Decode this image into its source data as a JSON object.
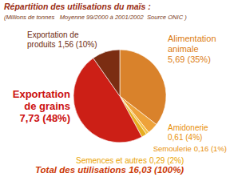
{
  "chart_data": {
    "type": "pie",
    "title": "Répartition des utilisations du maïs :",
    "subtitle": "(Millions de tonnes   Moyenne 99/2000 à 2001/2002  Source ONIC )",
    "categories": [
      "Alimentation animale",
      "Amidonerie",
      "Semoulerie",
      "Semences et autres",
      "Exportation de grains",
      "Exportation de produits"
    ],
    "values": [
      5.69,
      0.61,
      0.16,
      0.29,
      7.73,
      1.56
    ],
    "value_labels": [
      "5,69 (35%)",
      "0,61 (4%)",
      "0,16 (1%)",
      "0,29 (2%)",
      "7,73 (48%)",
      "1,56 (10%)"
    ],
    "colors": [
      "#d9822b",
      "#eea23a",
      "#f5c24a",
      "#e6ad1f",
      "#cc1f16",
      "#7b2d12"
    ],
    "data_labels": true,
    "annotation": "Total des utilisations 16,03 (100%)"
  }
}
